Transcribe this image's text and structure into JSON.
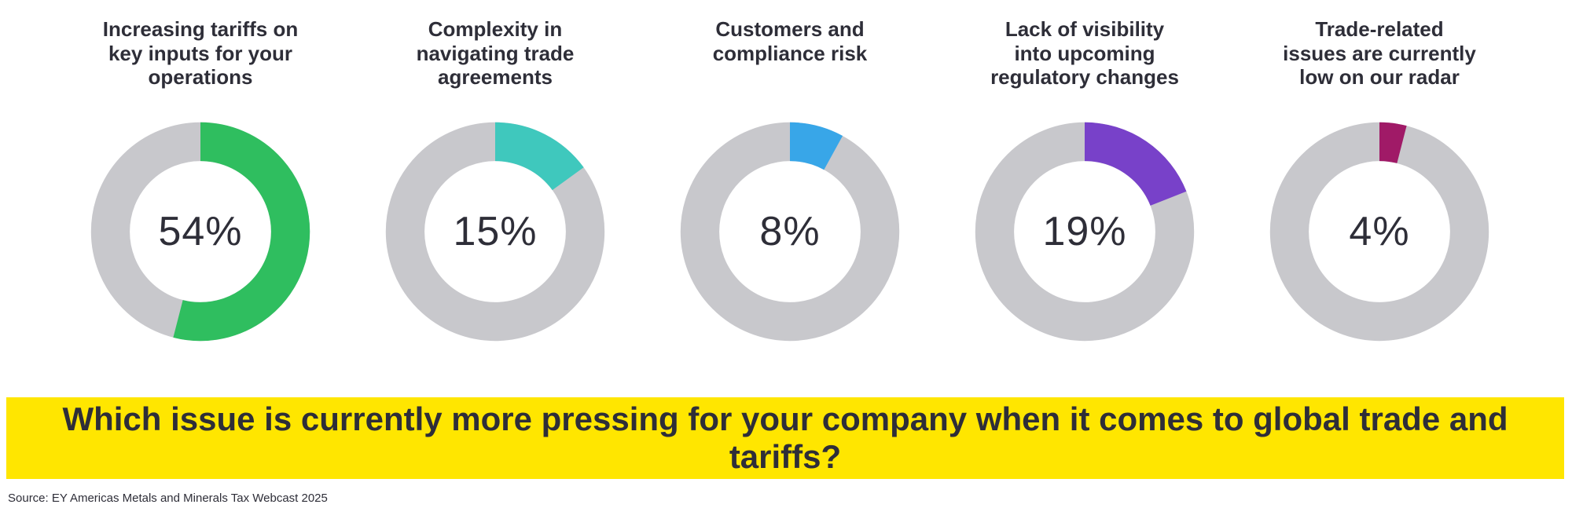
{
  "chart_data": {
    "type": "pie",
    "subtype": "donut-multiples",
    "unit": "%",
    "items": [
      {
        "label": "Increasing tariffs on key inputs for your operations",
        "value": 54,
        "pct_label": "54%",
        "color": "#2fbe5f"
      },
      {
        "label": "Complexity in navigating trade agreements",
        "value": 15,
        "pct_label": "15%",
        "color": "#3fc8bd"
      },
      {
        "label": "Customers and compliance risk",
        "value": 8,
        "pct_label": "8%",
        "color": "#38a6e8"
      },
      {
        "label": "Lack of visibility into upcoming regulatory changes",
        "value": 19,
        "pct_label": "19%",
        "color": "#7841c9"
      },
      {
        "label": "Trade-related issues are currently low on our radar",
        "value": 4,
        "pct_label": "4%",
        "color": "#a01a67"
      }
    ],
    "track_color": "#c8c8cc",
    "start_angle": "12-oclock",
    "sweep": "clockwise",
    "legend": "none"
  },
  "banner": {
    "question": "Which issue is currently more pressing for your company when it comes to global trade and tariffs?",
    "background": "#ffe600"
  },
  "source": {
    "text": "Source: EY Americas Metals and Minerals Tax Webcast 2025"
  },
  "colors": {
    "text": "#2e2e38",
    "background": "#ffffff"
  }
}
